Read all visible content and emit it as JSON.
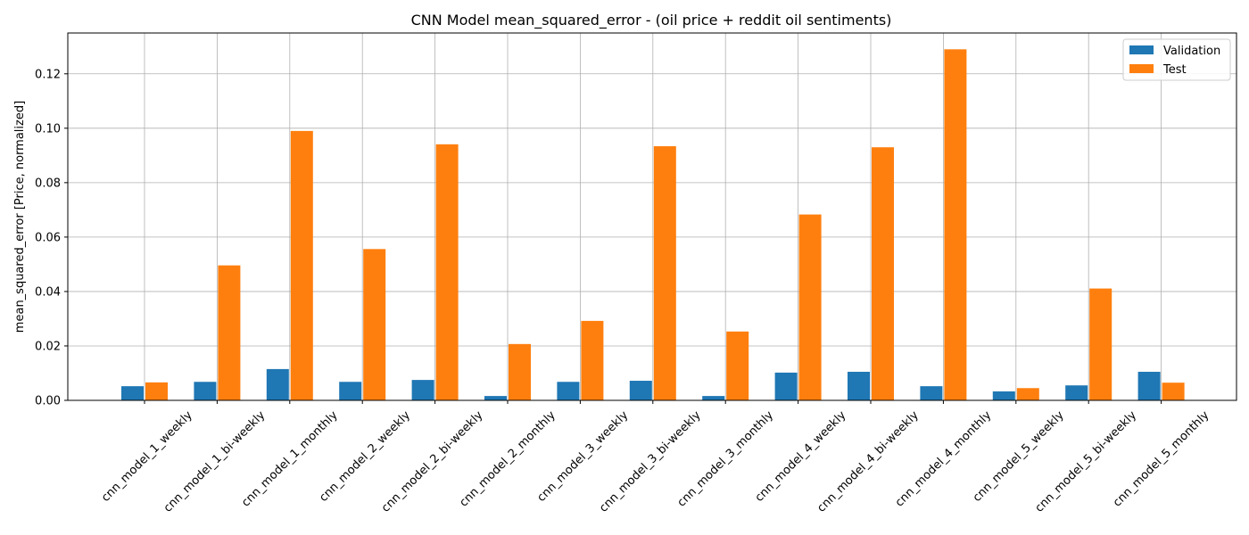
{
  "chart_data": {
    "type": "bar",
    "title": "CNN Model mean_squared_error - (oil price + reddit oil sentiments)",
    "xlabel": "",
    "ylabel": "mean_squared_error [Price, normalized]",
    "ylim": [
      0,
      0.135
    ],
    "yticks": [
      0.0,
      0.02,
      0.04,
      0.06,
      0.08,
      0.1,
      0.12
    ],
    "ytick_labels": [
      "0.00",
      "0.02",
      "0.04",
      "0.06",
      "0.08",
      "0.10",
      "0.12"
    ],
    "grid": true,
    "legend_position": "top-right",
    "categories": [
      "cnn_model_1_weekly",
      "cnn_model_1_bi-weekly",
      "cnn_model_1_monthly",
      "cnn_model_2_weekly",
      "cnn_model_2_bi-weekly",
      "cnn_model_2_monthly",
      "cnn_model_3_weekly",
      "cnn_model_3_bi-weekly",
      "cnn_model_3_monthly",
      "cnn_model_4_weekly",
      "cnn_model_4_bi-weekly",
      "cnn_model_4_monthly",
      "cnn_model_5_weekly",
      "cnn_model_5_bi-weekly",
      "cnn_model_5_monthly"
    ],
    "series": [
      {
        "name": "Validation",
        "color": "#1f77b4",
        "values": [
          0.0052,
          0.0068,
          0.0115,
          0.0068,
          0.0075,
          0.0016,
          0.0068,
          0.0072,
          0.0016,
          0.0102,
          0.0105,
          0.0052,
          0.0033,
          0.0055,
          0.0105
        ]
      },
      {
        "name": "Test",
        "color": "#ff7f0e",
        "values": [
          0.0066,
          0.0496,
          0.099,
          0.0556,
          0.0941,
          0.0207,
          0.0292,
          0.0934,
          0.0253,
          0.0683,
          0.093,
          0.129,
          0.0045,
          0.0411,
          0.0065
        ]
      }
    ]
  }
}
